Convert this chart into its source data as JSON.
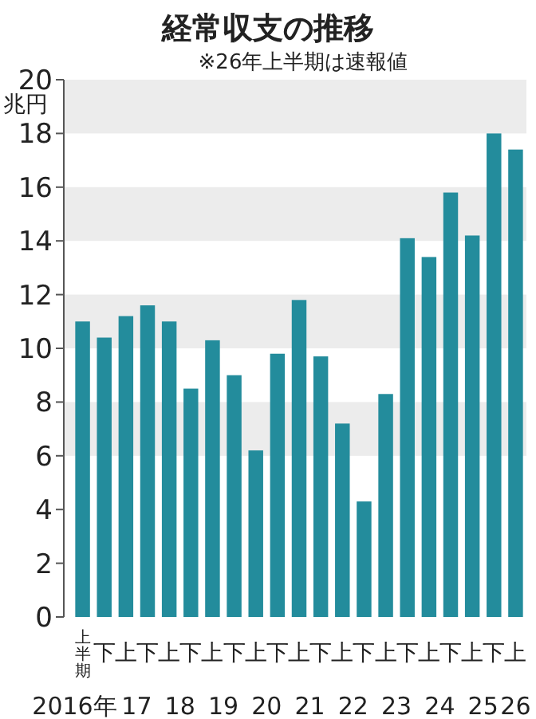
{
  "chart_data": {
    "type": "bar",
    "title": "経常収支の推移",
    "subtitle": "※26年上半期は速報値",
    "ylabel": "兆円",
    "categories": [
      "上半期",
      "下",
      "上",
      "下",
      "上",
      "下",
      "上",
      "下",
      "上",
      "下",
      "上",
      "下",
      "上",
      "下",
      "上",
      "下",
      "上",
      "下",
      "上",
      "下",
      "上"
    ],
    "values": [
      11.0,
      10.4,
      11.2,
      11.6,
      11.0,
      8.5,
      10.3,
      9.0,
      6.2,
      9.8,
      11.8,
      9.7,
      7.2,
      4.3,
      8.3,
      14.1,
      13.4,
      15.8,
      14.2,
      18.0,
      17.4
    ],
    "color": "#238c9c",
    "annotations": [
      "2016年",
      "17",
      "18",
      "19",
      "20",
      "21",
      "22",
      "23",
      "24",
      "25",
      "26"
    ],
    "ylim": [
      0,
      20
    ],
    "yticks": [
      0,
      2,
      4,
      6,
      8,
      10,
      12,
      14,
      16,
      18,
      20
    ],
    "bands": [
      {
        "axis": "y",
        "from": 6,
        "to": 8,
        "color": "#ececec"
      },
      {
        "axis": "y",
        "from": 10,
        "to": 12,
        "color": "#ececec"
      },
      {
        "axis": "y",
        "from": 14,
        "to": 16,
        "color": "#ececec"
      },
      {
        "axis": "y",
        "from": 18,
        "to": 20,
        "color": "#ececec"
      }
    ],
    "grid": false
  }
}
